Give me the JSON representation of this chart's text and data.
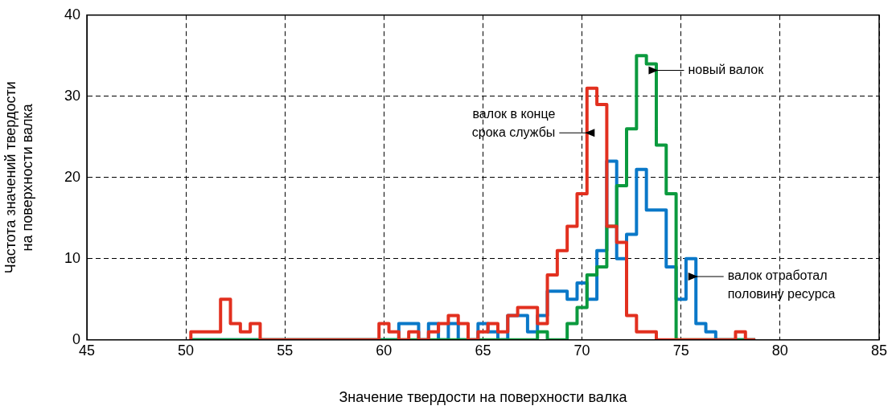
{
  "chart_data": {
    "type": "histogram",
    "xlabel": "Значение твердости на поверхности валка",
    "ylabel": "Частота значений твердости на поверхности валка",
    "bins": [
      50.25,
      50.75,
      51.25,
      51.75,
      52.25,
      52.75,
      53.25,
      53.75,
      54.25,
      54.75,
      55.25,
      55.75,
      56.25,
      56.75,
      57.25,
      57.75,
      58.25,
      58.75,
      59.25,
      59.75,
      60.25,
      60.75,
      61.25,
      61.75,
      62.25,
      62.75,
      63.25,
      63.75,
      64.25,
      64.75,
      65.25,
      65.75,
      66.25,
      66.75,
      67.25,
      67.75,
      68.25,
      68.75,
      69.25,
      69.75,
      70.25,
      70.75,
      71.25,
      71.75,
      72.25,
      72.75,
      73.25,
      73.75,
      74.25,
      74.75,
      75.25,
      75.75,
      76.25,
      76.75,
      77.25,
      77.75,
      78.25,
      78.75
    ],
    "series": [
      {
        "name": "валок в конце срока службы",
        "color": "#e2301f",
        "values": [
          1,
          1,
          1,
          5,
          2,
          1,
          2,
          0,
          0,
          0,
          0,
          0,
          0,
          0,
          0,
          0,
          0,
          0,
          0,
          2,
          1,
          0,
          1,
          0,
          1,
          2,
          3,
          2,
          0,
          1,
          2,
          1,
          3,
          4,
          4,
          2,
          8,
          11,
          14,
          18,
          31,
          29,
          14,
          12,
          3,
          1,
          1,
          0,
          0,
          0,
          0,
          0,
          0,
          0,
          0,
          1,
          0
        ]
      },
      {
        "name": "новый валок",
        "color": "#0b9a3e",
        "values": [
          0,
          0,
          0,
          0,
          0,
          0,
          0,
          0,
          0,
          0,
          0,
          0,
          0,
          0,
          0,
          0,
          0,
          0,
          0,
          0,
          0,
          0,
          0,
          0,
          0,
          0,
          0,
          0,
          0,
          0,
          0,
          0,
          0,
          0,
          0,
          1,
          0,
          0,
          2,
          4,
          8,
          9,
          14,
          19,
          26,
          35,
          34,
          24,
          18,
          0,
          0,
          0,
          0,
          0,
          0,
          0,
          0
        ]
      },
      {
        "name": "валок отработал половину ресурса",
        "color": "#0a78c8",
        "values": [
          0,
          0,
          0,
          0,
          0,
          0,
          0,
          0,
          0,
          0,
          0,
          0,
          0,
          0,
          0,
          0,
          0,
          0,
          0,
          0,
          0,
          2,
          2,
          0,
          2,
          0,
          2,
          0,
          0,
          2,
          1,
          0,
          3,
          3,
          1,
          3,
          6,
          6,
          5,
          7,
          5,
          11,
          22,
          10,
          13,
          21,
          16,
          16,
          9,
          5,
          10,
          2,
          1,
          0,
          0,
          0,
          0
        ]
      }
    ],
    "xlim": [
      45,
      85
    ],
    "xticks": [
      45,
      50,
      55,
      60,
      65,
      70,
      75,
      80,
      85
    ],
    "ylim": [
      0,
      40
    ],
    "yticks": [
      0,
      10,
      20,
      30,
      40
    ],
    "grid": true
  }
}
